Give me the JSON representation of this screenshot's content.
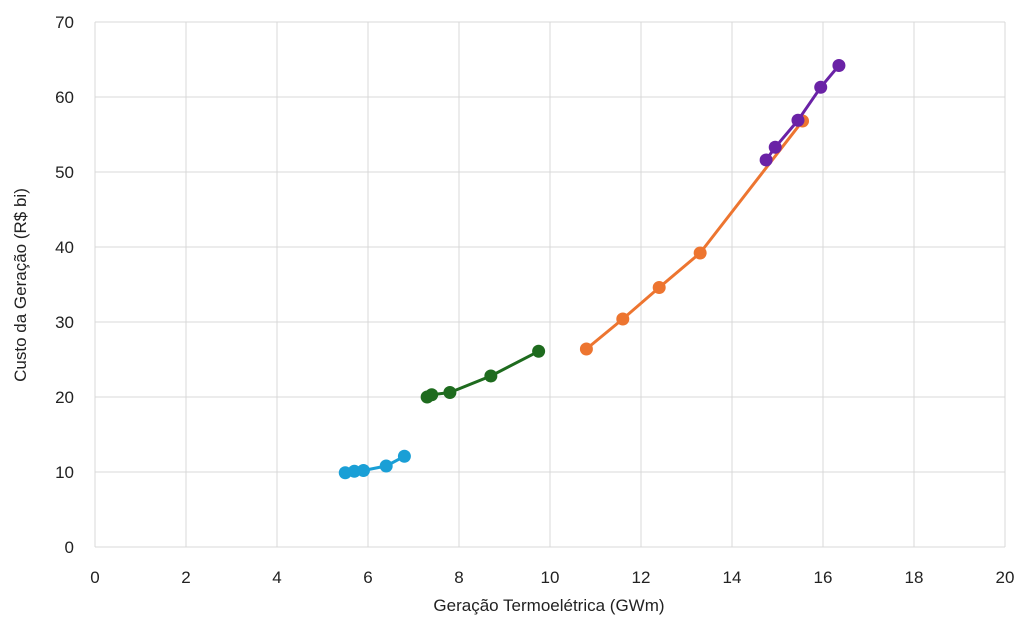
{
  "chart_data": {
    "type": "scatter",
    "title": "",
    "xlabel": "Geração Termoelétrica (GWm)",
    "ylabel": "Custo da Geração (R$ bi)",
    "xlim": [
      0,
      20
    ],
    "ylim": [
      0,
      70
    ],
    "x_ticks": [
      0,
      2,
      4,
      6,
      8,
      10,
      12,
      14,
      16,
      18,
      20
    ],
    "y_ticks": [
      0,
      10,
      20,
      30,
      40,
      50,
      60,
      70
    ],
    "grid": true,
    "legend": "none",
    "series": [
      {
        "color": "#1a9fd6",
        "points": [
          [
            5.5,
            9.9
          ],
          [
            5.7,
            10.1
          ],
          [
            5.9,
            10.2
          ],
          [
            6.4,
            10.8
          ],
          [
            6.8,
            12.1
          ]
        ]
      },
      {
        "color": "#1e6b1e",
        "points": [
          [
            7.3,
            20.0
          ],
          [
            7.4,
            20.3
          ],
          [
            7.8,
            20.6
          ],
          [
            8.7,
            22.8
          ],
          [
            9.75,
            26.1
          ]
        ]
      },
      {
        "color": "#ed7530",
        "points": [
          [
            10.8,
            26.4
          ],
          [
            11.6,
            30.4
          ],
          [
            12.4,
            34.6
          ],
          [
            13.3,
            39.2
          ],
          [
            15.55,
            56.8
          ]
        ]
      },
      {
        "color": "#6a22a6",
        "points": [
          [
            14.75,
            51.6
          ],
          [
            14.95,
            53.3
          ],
          [
            15.45,
            56.9
          ],
          [
            15.95,
            61.3
          ],
          [
            16.35,
            64.2
          ]
        ]
      }
    ]
  }
}
